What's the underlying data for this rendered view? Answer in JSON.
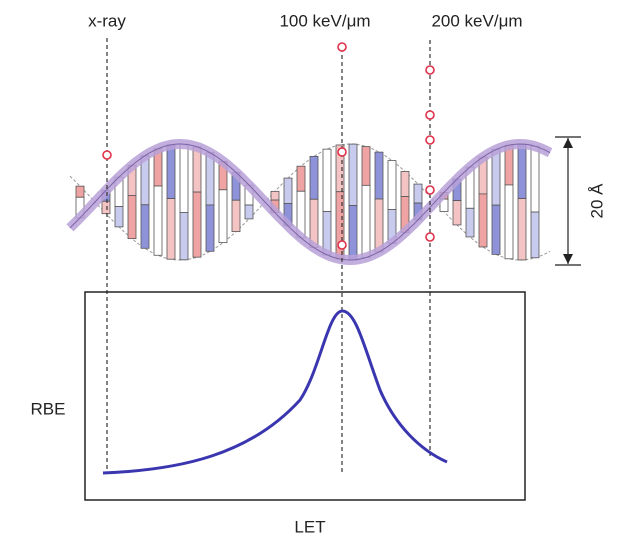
{
  "tracks": [
    {
      "label": "x-ray"
    },
    {
      "label": "100 keV/μm"
    },
    {
      "label": "200 keV/μm"
    }
  ],
  "scale_label": "20 Å",
  "plot": {
    "y_label": "RBE",
    "x_label": "LET"
  }
}
